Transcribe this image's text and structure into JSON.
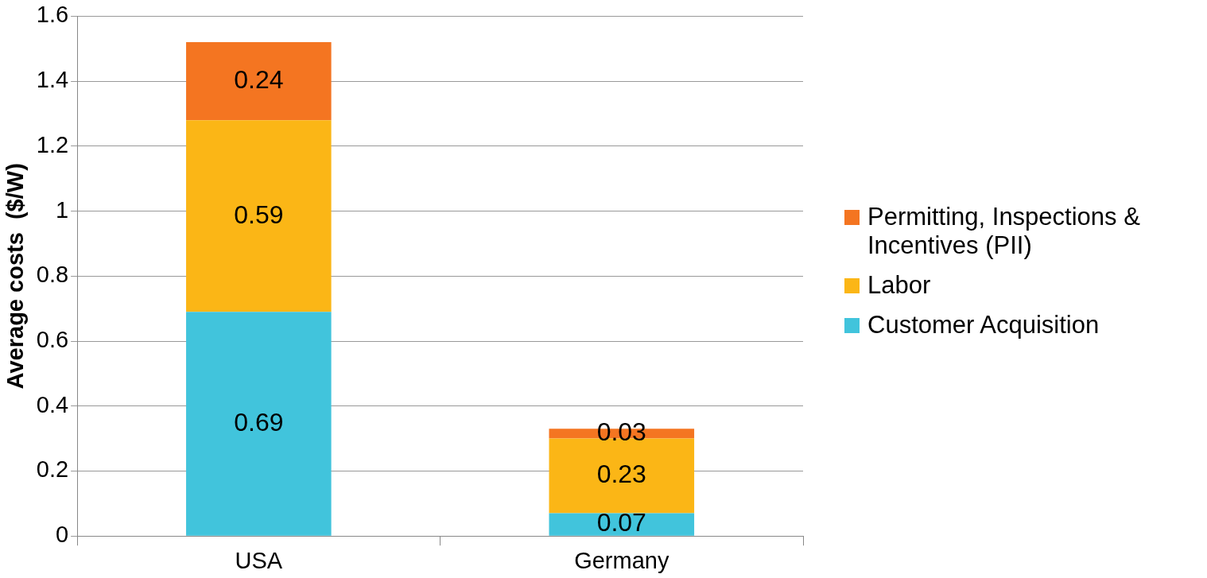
{
  "chart_data": {
    "type": "bar",
    "stacked": true,
    "ylabel": "Average costs  ($/W)",
    "categories": [
      "USA",
      "Germany"
    ],
    "series": [
      {
        "name": "Customer Acquisition",
        "color": "#41c4dc",
        "values": [
          0.69,
          0.07
        ]
      },
      {
        "name": "Labor",
        "color": "#fbb616",
        "values": [
          0.59,
          0.23
        ]
      },
      {
        "name": "Permitting, Inspections & Incentives (PII)",
        "color": "#f47521",
        "values": [
          0.24,
          0.03
        ]
      }
    ],
    "ylim": [
      0,
      1.6
    ],
    "yticks": [
      0,
      0.2,
      0.4,
      0.6,
      0.8,
      1,
      1.2,
      1.4,
      1.6
    ],
    "grid": "y",
    "legend": "right",
    "data_labels": true
  }
}
